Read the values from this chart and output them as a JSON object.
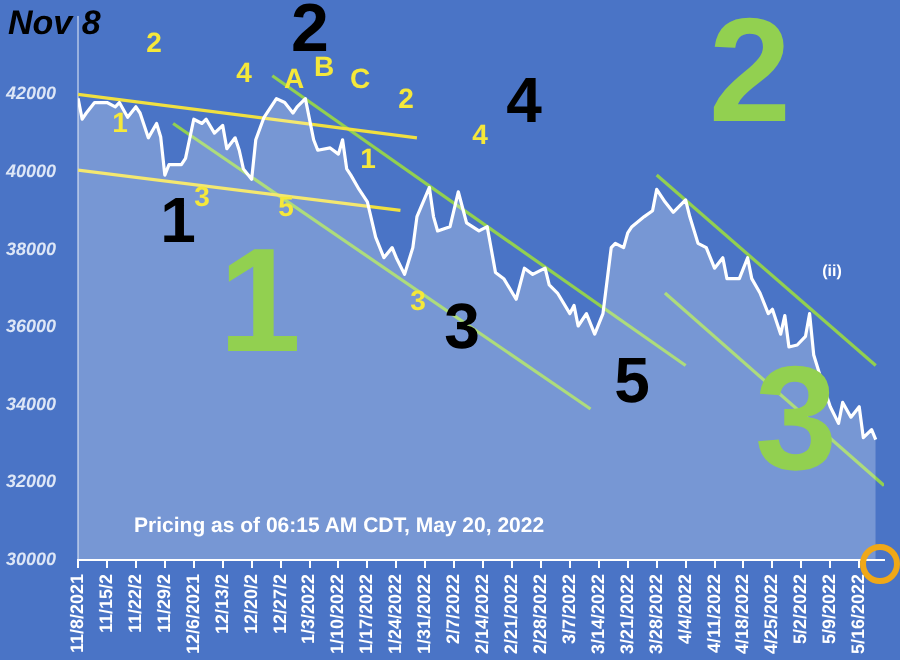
{
  "chart_data": {
    "type": "area",
    "title": "Nov 8",
    "legend": false,
    "grid": false,
    "marker": "none",
    "xlim": [
      "2021-11-08",
      "2022-05-22"
    ],
    "ylim": [
      30000,
      44000
    ],
    "yticks": [
      30000,
      32000,
      34000,
      36000,
      38000,
      40000,
      42000
    ],
    "xticks": [
      {
        "value": "2021-11-08",
        "label": "11/8/2021"
      },
      {
        "value": "2021-11-15",
        "label": "11/15/2"
      },
      {
        "value": "2021-11-22",
        "label": "11/22/2"
      },
      {
        "value": "2021-11-29",
        "label": "11/29/2"
      },
      {
        "value": "2021-12-06",
        "label": "12/6/2021"
      },
      {
        "value": "2021-12-13",
        "label": "12/13/2"
      },
      {
        "value": "2021-12-20",
        "label": "12/20/2"
      },
      {
        "value": "2021-12-27",
        "label": "12/27/2"
      },
      {
        "value": "2022-01-03",
        "label": "1/3/2022"
      },
      {
        "value": "2022-01-10",
        "label": "1/10/2022"
      },
      {
        "value": "2022-01-17",
        "label": "1/17/2022"
      },
      {
        "value": "2022-01-24",
        "label": "1/24/2022"
      },
      {
        "value": "2022-01-31",
        "label": "1/31/2022"
      },
      {
        "value": "2022-02-07",
        "label": "2/7/2022"
      },
      {
        "value": "2022-02-14",
        "label": "2/14/2022"
      },
      {
        "value": "2022-02-21",
        "label": "2/21/2022"
      },
      {
        "value": "2022-02-28",
        "label": "2/28/2022"
      },
      {
        "value": "2022-03-07",
        "label": "3/7/2022"
      },
      {
        "value": "2022-03-14",
        "label": "3/14/2022"
      },
      {
        "value": "2022-03-21",
        "label": "3/21/2022"
      },
      {
        "value": "2022-03-28",
        "label": "3/28/2022"
      },
      {
        "value": "2022-04-04",
        "label": "4/4/2022"
      },
      {
        "value": "2022-04-11",
        "label": "4/11/2022"
      },
      {
        "value": "2022-04-18",
        "label": "4/18/2022"
      },
      {
        "value": "2022-04-25",
        "label": "4/25/2022"
      },
      {
        "value": "2022-05-02",
        "label": "5/2/2022"
      },
      {
        "value": "2022-05-09",
        "label": "5/9/2022"
      },
      {
        "value": "2022-05-16",
        "label": "5/16/2022"
      }
    ],
    "annotations": [
      "Pricing as of 06:15 AM CDT, May 20, 2022",
      "2",
      "1",
      "3",
      "4",
      "5",
      "A",
      "B",
      "C",
      "2",
      "1",
      "3",
      "4",
      "2",
      "4",
      "1",
      "3",
      "5",
      "1",
      "2",
      "3",
      "(ii)"
    ],
    "series": [
      {
        "color": "#ffffff",
        "x": [
          "2021-11-08",
          "2021-11-09",
          "2021-11-10",
          "2021-11-12",
          "2021-11-15",
          "2021-11-17",
          "2021-11-18",
          "2021-11-20",
          "2021-11-22",
          "2021-11-23",
          "2021-11-25",
          "2021-11-27",
          "2021-11-28",
          "2021-11-29",
          "2021-11-30",
          "2021-12-03",
          "2021-12-04",
          "2021-12-06",
          "2021-12-08",
          "2021-12-09",
          "2021-12-11",
          "2021-12-13",
          "2021-12-14",
          "2021-12-16",
          "2021-12-17",
          "2021-12-18",
          "2021-12-20",
          "2021-12-21",
          "2021-12-23",
          "2021-12-26",
          "2021-12-28",
          "2021-12-30",
          "2021-12-31",
          "2022-01-02",
          "2022-01-04",
          "2022-01-05",
          "2022-01-08",
          "2022-01-10",
          "2022-01-11",
          "2022-01-12",
          "2022-01-13",
          "2022-01-15",
          "2022-01-17",
          "2022-01-19",
          "2022-01-21",
          "2022-01-23",
          "2022-01-24",
          "2022-01-26",
          "2022-01-28",
          "2022-01-29",
          "2022-02-01",
          "2022-02-02",
          "2022-02-03",
          "2022-02-06",
          "2022-02-08",
          "2022-02-10",
          "2022-02-13",
          "2022-02-15",
          "2022-02-17",
          "2022-02-19",
          "2022-02-22",
          "2022-02-24",
          "2022-02-26",
          "2022-03-01",
          "2022-03-02",
          "2022-03-04",
          "2022-03-07",
          "2022-03-08",
          "2022-03-09",
          "2022-03-11",
          "2022-03-13",
          "2022-03-15",
          "2022-03-17",
          "2022-03-18",
          "2022-03-20",
          "2022-03-21",
          "2022-03-22",
          "2022-03-25",
          "2022-03-27",
          "2022-03-28",
          "2022-03-30",
          "2022-04-01",
          "2022-04-04",
          "2022-04-05",
          "2022-04-07",
          "2022-04-09",
          "2022-04-11",
          "2022-04-13",
          "2022-04-14",
          "2022-04-17",
          "2022-04-19",
          "2022-04-20",
          "2022-04-22",
          "2022-04-24",
          "2022-04-25",
          "2022-04-27",
          "2022-04-28",
          "2022-04-29",
          "2022-05-01",
          "2022-05-03",
          "2022-05-04",
          "2022-05-05",
          "2022-05-07",
          "2022-05-09",
          "2022-05-11",
          "2022-05-12",
          "2022-05-14",
          "2022-05-16",
          "2022-05-17",
          "2022-05-19",
          "2022-05-20"
        ],
        "values": [
          41900,
          41360,
          41520,
          41790,
          41790,
          41680,
          41790,
          41410,
          41680,
          41520,
          40880,
          41250,
          40900,
          39920,
          40190,
          40190,
          40350,
          41360,
          41250,
          41360,
          41000,
          41200,
          40600,
          40880,
          40560,
          40080,
          39810,
          40830,
          41410,
          41890,
          41790,
          41520,
          41680,
          41890,
          40830,
          40560,
          40620,
          40460,
          40830,
          40080,
          39920,
          39550,
          39230,
          38320,
          37790,
          38050,
          37790,
          37360,
          38050,
          38850,
          39600,
          38850,
          38480,
          38590,
          39490,
          38690,
          38480,
          38590,
          37410,
          37250,
          36720,
          37520,
          37360,
          37520,
          37090,
          36880,
          36350,
          36560,
          36030,
          36350,
          35820,
          36350,
          38050,
          38160,
          38050,
          38430,
          38590,
          38850,
          39000,
          39550,
          39230,
          38960,
          39280,
          38850,
          38160,
          38050,
          37520,
          37790,
          37250,
          37250,
          37790,
          37250,
          36880,
          36350,
          36460,
          35820,
          36300,
          35490,
          35540,
          35760,
          36350,
          35280,
          34590,
          33950,
          33520,
          34060,
          33680,
          33950,
          33150,
          33360,
          33100
        ]
      },
      {
        "type": "line",
        "color": "#f0e040",
        "x": [
          "2021-11-08",
          "2022-01-29"
        ],
        "values": [
          42000,
          40880
        ]
      },
      {
        "type": "line",
        "color": "#f0e040",
        "x": [
          "2021-11-08",
          "2022-01-25"
        ],
        "values": [
          40050,
          39010
        ]
      },
      {
        "type": "line",
        "color": "#92d050",
        "x": [
          "2021-12-01",
          "2022-03-12"
        ],
        "values": [
          41250,
          33890
        ]
      },
      {
        "type": "line",
        "color": "#92d050",
        "x": [
          "2021-12-25",
          "2022-04-04"
        ],
        "values": [
          42480,
          35010
        ]
      },
      {
        "type": "line",
        "color": "#92d050",
        "x": [
          "2022-03-28",
          "2022-05-20"
        ],
        "values": [
          39920,
          35010
        ]
      },
      {
        "type": "line",
        "color": "#92d050",
        "x": [
          "2022-03-30",
          "2022-05-22"
        ],
        "values": [
          36880,
          31920
        ]
      }
    ]
  }
}
